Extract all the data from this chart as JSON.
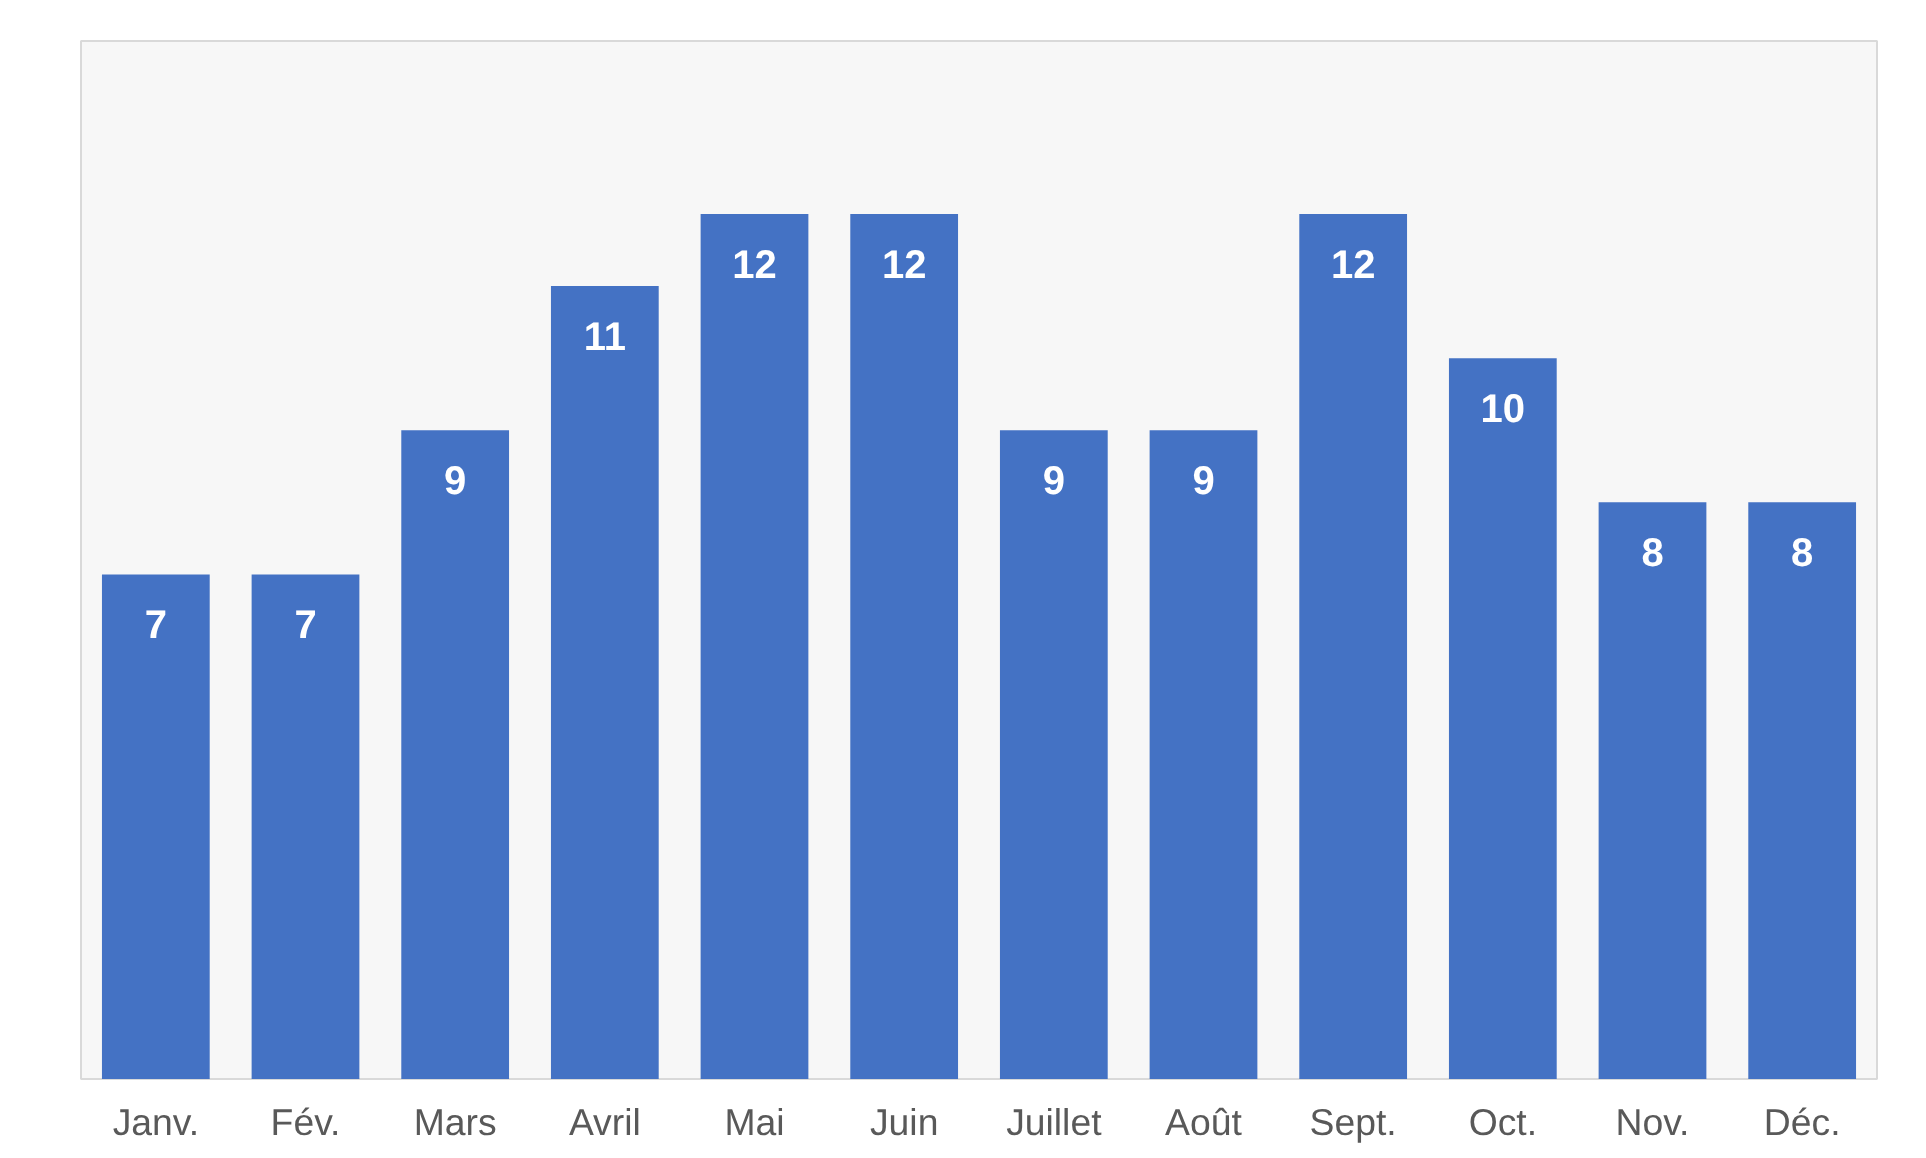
{
  "chart_data": {
    "type": "bar",
    "categories": [
      "Janv.",
      "Fév.",
      "Mars",
      "Avril",
      "Mai",
      "Juin",
      "Juillet",
      "Août",
      "Sept.",
      "Oct.",
      "Nov.",
      "Déc."
    ],
    "values": [
      7,
      7,
      9,
      11,
      12,
      12,
      9,
      9,
      12,
      10,
      8,
      8
    ],
    "color": "#4472c4",
    "data_labels": true
  }
}
